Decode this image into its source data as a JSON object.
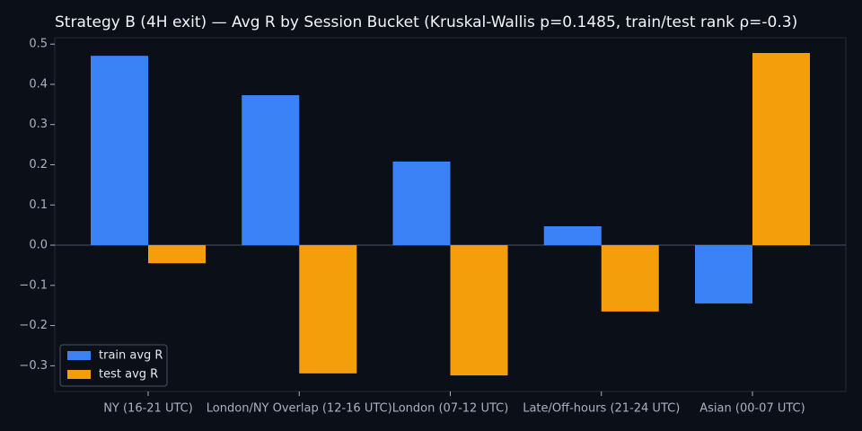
{
  "chart_data": {
    "type": "bar",
    "title": "Strategy B (4H exit) — Avg R by Session Bucket (Kruskal-Wallis p=0.1485, train/test rank ρ=-0.3)",
    "categories": [
      "NY (16-21 UTC)",
      "London/NY Overlap (12-16 UTC)",
      "London (07-12 UTC)",
      "Late/Off-hours (21-24 UTC)",
      "Asian (00-07 UTC)"
    ],
    "series": [
      {
        "name": "train avg R",
        "color": "#3b82f6",
        "values": [
          0.471,
          0.373,
          0.208,
          0.047,
          -0.145
        ]
      },
      {
        "name": "test avg R",
        "color": "#f59e0b",
        "values": [
          -0.045,
          -0.319,
          -0.324,
          -0.165,
          0.478
        ]
      }
    ],
    "ylim": [
      -0.364,
      0.516
    ],
    "yticks": [
      {
        "value": -0.3,
        "label": "−0.3"
      },
      {
        "value": -0.2,
        "label": "−0.2"
      },
      {
        "value": -0.1,
        "label": "−0.1"
      },
      {
        "value": 0,
        "label": "0.0"
      },
      0.1,
      0.2,
      0.3,
      0.4,
      0.5
    ],
    "legend": "lower left"
  }
}
